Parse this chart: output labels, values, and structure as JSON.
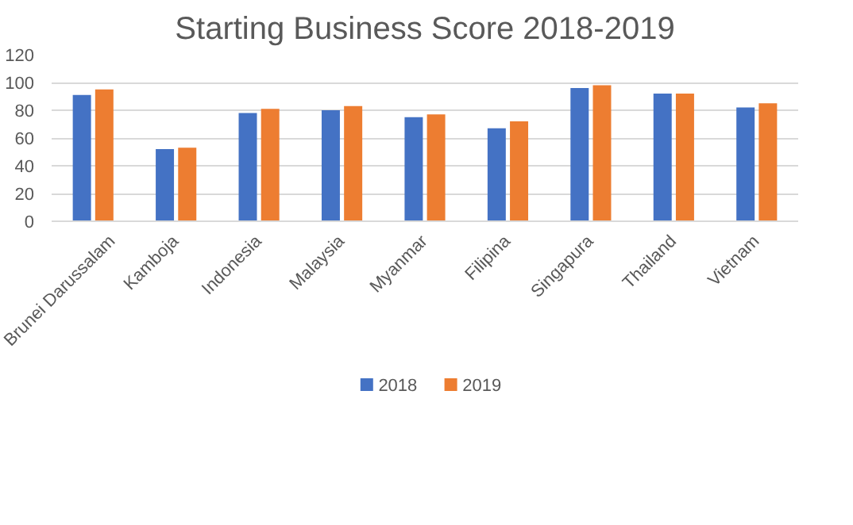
{
  "chart_data": {
    "type": "bar",
    "title": "Starting Business Score 2018-2019",
    "categories": [
      "Brunei Darussalam",
      "Kamboja",
      "Indonesia",
      "Malaysia",
      "Myanmar",
      "Filipina",
      "Singapura",
      "Thailand",
      "Vietnam"
    ],
    "series": [
      {
        "name": "2018",
        "color": "#4472c4",
        "values": [
          91,
          52,
          78,
          80,
          75,
          67,
          96,
          92,
          82
        ]
      },
      {
        "name": "2019",
        "color": "#ed7d31",
        "values": [
          95,
          53,
          81,
          83,
          77,
          72,
          98,
          92,
          85
        ]
      }
    ],
    "ylim": [
      0,
      120
    ],
    "yticks": [
      0,
      20,
      40,
      60,
      80,
      100,
      120
    ],
    "grid": "y",
    "legend": "bottom"
  }
}
